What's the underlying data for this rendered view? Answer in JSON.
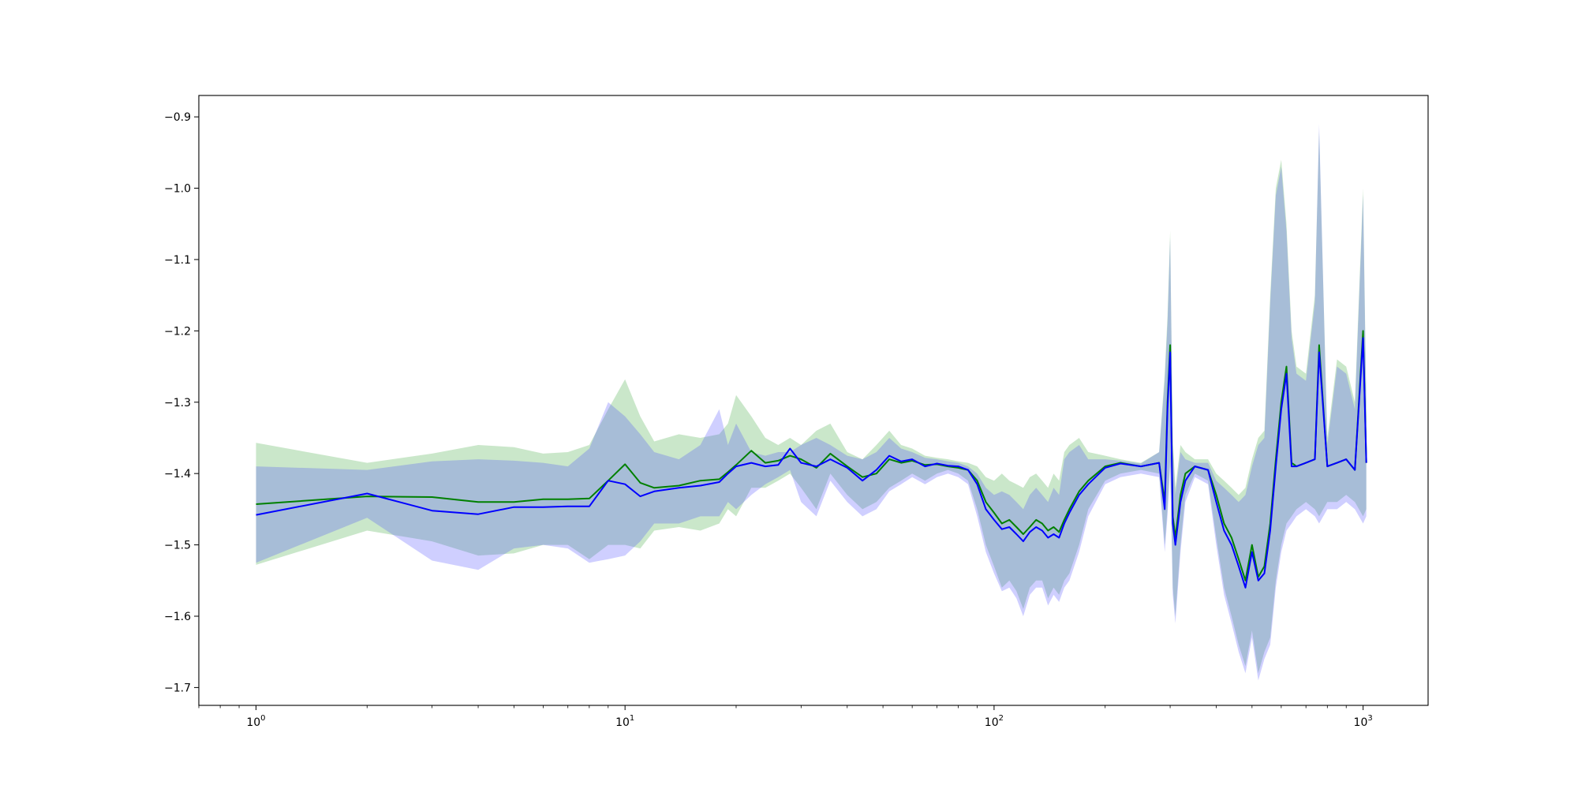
{
  "chart_data": {
    "type": "line",
    "title": "",
    "xlabel": "",
    "ylabel": "",
    "xscale": "log",
    "xlim": [
      0.7,
      1500
    ],
    "ylim": [
      -1.725,
      -0.87
    ],
    "grid": false,
    "legend": "none",
    "x_ticks": [
      {
        "value": 1,
        "base": "10",
        "exp": "0"
      },
      {
        "value": 10,
        "base": "10",
        "exp": "1"
      },
      {
        "value": 100,
        "base": "10",
        "exp": "2"
      },
      {
        "value": 1000,
        "base": "10",
        "exp": "3"
      }
    ],
    "y_ticks": [
      {
        "value": -0.9,
        "label": "−0.9"
      },
      {
        "value": -1.0,
        "label": "−1.0"
      },
      {
        "value": -1.1,
        "label": "−1.1"
      },
      {
        "value": -1.2,
        "label": "−1.2"
      },
      {
        "value": -1.3,
        "label": "−1.3"
      },
      {
        "value": -1.4,
        "label": "−1.4"
      },
      {
        "value": -1.5,
        "label": "−1.5"
      },
      {
        "value": -1.6,
        "label": "−1.6"
      },
      {
        "value": -1.7,
        "label": "−1.7"
      }
    ],
    "x": [
      1,
      2,
      3,
      4,
      5,
      6,
      7,
      8,
      9,
      10,
      11,
      12,
      14,
      16,
      18,
      19,
      20,
      22,
      24,
      26,
      28,
      30,
      33,
      36,
      40,
      44,
      48,
      52,
      56,
      60,
      65,
      70,
      75,
      80,
      85,
      90,
      95,
      100,
      105,
      110,
      115,
      120,
      125,
      130,
      135,
      140,
      145,
      150,
      155,
      160,
      170,
      180,
      200,
      220,
      250,
      280,
      290,
      295,
      300,
      305,
      310,
      320,
      330,
      350,
      380,
      400,
      420,
      440,
      460,
      480,
      500,
      520,
      540,
      560,
      580,
      600,
      620,
      640,
      660,
      700,
      740,
      760,
      800,
      850,
      900,
      950,
      1000,
      1020
    ],
    "series": [
      {
        "color": "#008000",
        "band_color": "#2ca02c",
        "values": [
          -1.443,
          -1.432,
          -1.433,
          -1.44,
          -1.44,
          -1.436,
          -1.436,
          -1.435,
          -1.41,
          -1.387,
          -1.413,
          -1.42,
          -1.417,
          -1.41,
          -1.408,
          -1.398,
          -1.388,
          -1.368,
          -1.385,
          -1.382,
          -1.375,
          -1.38,
          -1.392,
          -1.372,
          -1.39,
          -1.405,
          -1.4,
          -1.38,
          -1.385,
          -1.382,
          -1.388,
          -1.387,
          -1.39,
          -1.392,
          -1.395,
          -1.41,
          -1.44,
          -1.455,
          -1.47,
          -1.465,
          -1.475,
          -1.485,
          -1.475,
          -1.465,
          -1.47,
          -1.48,
          -1.475,
          -1.482,
          -1.465,
          -1.45,
          -1.425,
          -1.41,
          -1.39,
          -1.385,
          -1.39,
          -1.385,
          -1.44,
          -1.3,
          -1.22,
          -1.46,
          -1.49,
          -1.43,
          -1.4,
          -1.39,
          -1.395,
          -1.43,
          -1.47,
          -1.49,
          -1.52,
          -1.55,
          -1.5,
          -1.545,
          -1.53,
          -1.47,
          -1.38,
          -1.3,
          -1.25,
          -1.385,
          -1.39,
          -1.385,
          -1.38,
          -1.22,
          -1.39,
          -1.385,
          -1.38,
          -1.395,
          -1.2,
          -1.385
        ],
        "upper": [
          -1.357,
          -1.385,
          -1.372,
          -1.36,
          -1.363,
          -1.372,
          -1.37,
          -1.36,
          -1.31,
          -1.268,
          -1.32,
          -1.355,
          -1.345,
          -1.35,
          -1.345,
          -1.33,
          -1.29,
          -1.32,
          -1.35,
          -1.36,
          -1.35,
          -1.36,
          -1.34,
          -1.33,
          -1.37,
          -1.38,
          -1.36,
          -1.34,
          -1.36,
          -1.365,
          -1.375,
          -1.378,
          -1.38,
          -1.383,
          -1.385,
          -1.39,
          -1.405,
          -1.41,
          -1.4,
          -1.41,
          -1.415,
          -1.42,
          -1.405,
          -1.4,
          -1.41,
          -1.42,
          -1.4,
          -1.41,
          -1.37,
          -1.36,
          -1.35,
          -1.37,
          -1.375,
          -1.38,
          -1.385,
          -1.37,
          -1.26,
          -1.18,
          -1.06,
          -1.35,
          -1.42,
          -1.36,
          -1.37,
          -1.38,
          -1.38,
          -1.4,
          -1.41,
          -1.42,
          -1.43,
          -1.42,
          -1.38,
          -1.35,
          -1.34,
          -1.15,
          -1.0,
          -0.96,
          -1.05,
          -1.2,
          -1.25,
          -1.26,
          -1.15,
          -0.92,
          -1.35,
          -1.24,
          -1.25,
          -1.3,
          -1.0,
          -1.3
        ],
        "lower": [
          -1.528,
          -1.48,
          -1.495,
          -1.515,
          -1.512,
          -1.5,
          -1.5,
          -1.52,
          -1.5,
          -1.5,
          -1.505,
          -1.48,
          -1.475,
          -1.48,
          -1.47,
          -1.45,
          -1.46,
          -1.42,
          -1.42,
          -1.41,
          -1.4,
          -1.42,
          -1.45,
          -1.4,
          -1.43,
          -1.45,
          -1.44,
          -1.42,
          -1.41,
          -1.4,
          -1.41,
          -1.4,
          -1.395,
          -1.4,
          -1.41,
          -1.45,
          -1.5,
          -1.53,
          -1.56,
          -1.55,
          -1.565,
          -1.59,
          -1.56,
          -1.55,
          -1.55,
          -1.575,
          -1.56,
          -1.57,
          -1.55,
          -1.54,
          -1.5,
          -1.45,
          -1.41,
          -1.4,
          -1.395,
          -1.4,
          -1.5,
          -1.45,
          -1.38,
          -1.56,
          -1.6,
          -1.5,
          -1.43,
          -1.4,
          -1.41,
          -1.49,
          -1.56,
          -1.6,
          -1.64,
          -1.67,
          -1.62,
          -1.68,
          -1.65,
          -1.63,
          -1.55,
          -1.5,
          -1.47,
          -1.46,
          -1.45,
          -1.44,
          -1.45,
          -1.46,
          -1.44,
          -1.44,
          -1.43,
          -1.44,
          -1.46,
          -1.45
        ]
      },
      {
        "color": "#0000ff",
        "band_color": "#4040ff",
        "values": [
          -1.458,
          -1.428,
          -1.452,
          -1.457,
          -1.447,
          -1.447,
          -1.446,
          -1.446,
          -1.41,
          -1.415,
          -1.432,
          -1.425,
          -1.42,
          -1.417,
          -1.412,
          -1.4,
          -1.39,
          -1.385,
          -1.39,
          -1.388,
          -1.365,
          -1.385,
          -1.39,
          -1.38,
          -1.392,
          -1.41,
          -1.395,
          -1.375,
          -1.383,
          -1.38,
          -1.39,
          -1.386,
          -1.389,
          -1.39,
          -1.395,
          -1.415,
          -1.45,
          -1.465,
          -1.478,
          -1.475,
          -1.485,
          -1.495,
          -1.482,
          -1.475,
          -1.48,
          -1.49,
          -1.485,
          -1.49,
          -1.47,
          -1.455,
          -1.43,
          -1.415,
          -1.392,
          -1.386,
          -1.39,
          -1.385,
          -1.45,
          -1.31,
          -1.23,
          -1.47,
          -1.5,
          -1.44,
          -1.41,
          -1.39,
          -1.395,
          -1.44,
          -1.48,
          -1.5,
          -1.53,
          -1.56,
          -1.51,
          -1.55,
          -1.54,
          -1.48,
          -1.39,
          -1.31,
          -1.26,
          -1.39,
          -1.39,
          -1.385,
          -1.38,
          -1.23,
          -1.39,
          -1.385,
          -1.38,
          -1.395,
          -1.21,
          -1.385
        ],
        "upper": [
          -1.39,
          -1.395,
          -1.383,
          -1.38,
          -1.382,
          -1.385,
          -1.39,
          -1.365,
          -1.3,
          -1.32,
          -1.345,
          -1.37,
          -1.38,
          -1.36,
          -1.31,
          -1.36,
          -1.33,
          -1.37,
          -1.375,
          -1.37,
          -1.37,
          -1.36,
          -1.35,
          -1.36,
          -1.375,
          -1.38,
          -1.37,
          -1.35,
          -1.365,
          -1.37,
          -1.378,
          -1.38,
          -1.383,
          -1.385,
          -1.39,
          -1.4,
          -1.42,
          -1.43,
          -1.425,
          -1.43,
          -1.44,
          -1.45,
          -1.43,
          -1.42,
          -1.43,
          -1.44,
          -1.42,
          -1.43,
          -1.38,
          -1.37,
          -1.36,
          -1.38,
          -1.38,
          -1.382,
          -1.386,
          -1.37,
          -1.27,
          -1.19,
          -1.07,
          -1.36,
          -1.43,
          -1.37,
          -1.38,
          -1.385,
          -1.385,
          -1.41,
          -1.42,
          -1.43,
          -1.44,
          -1.43,
          -1.39,
          -1.36,
          -1.35,
          -1.16,
          -1.01,
          -0.97,
          -1.06,
          -1.21,
          -1.26,
          -1.27,
          -1.16,
          -0.91,
          -1.36,
          -1.25,
          -1.26,
          -1.31,
          -1.01,
          -1.31
        ],
        "lower": [
          -1.525,
          -1.462,
          -1.522,
          -1.535,
          -1.505,
          -1.5,
          -1.505,
          -1.525,
          -1.52,
          -1.515,
          -1.495,
          -1.47,
          -1.47,
          -1.46,
          -1.46,
          -1.44,
          -1.45,
          -1.43,
          -1.415,
          -1.405,
          -1.395,
          -1.44,
          -1.46,
          -1.41,
          -1.44,
          -1.46,
          -1.45,
          -1.425,
          -1.415,
          -1.405,
          -1.415,
          -1.405,
          -1.4,
          -1.405,
          -1.415,
          -1.46,
          -1.51,
          -1.54,
          -1.565,
          -1.56,
          -1.575,
          -1.6,
          -1.57,
          -1.56,
          -1.56,
          -1.585,
          -1.57,
          -1.58,
          -1.56,
          -1.55,
          -1.51,
          -1.46,
          -1.415,
          -1.405,
          -1.4,
          -1.405,
          -1.51,
          -1.46,
          -1.39,
          -1.57,
          -1.61,
          -1.51,
          -1.44,
          -1.405,
          -1.415,
          -1.5,
          -1.57,
          -1.61,
          -1.65,
          -1.68,
          -1.63,
          -1.69,
          -1.66,
          -1.64,
          -1.56,
          -1.51,
          -1.48,
          -1.47,
          -1.46,
          -1.45,
          -1.46,
          -1.47,
          -1.45,
          -1.45,
          -1.44,
          -1.45,
          -1.47,
          -1.46
        ]
      }
    ]
  }
}
